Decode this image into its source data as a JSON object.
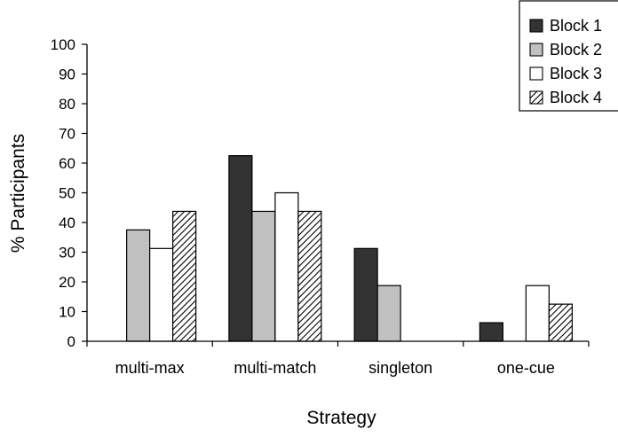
{
  "chart_data": {
    "type": "bar",
    "categories": [
      "multi-max",
      "multi-match",
      "singleton",
      "one-cue"
    ],
    "series": [
      {
        "name": "Block 1",
        "values": [
          0,
          62.5,
          31.25,
          6.25
        ],
        "color": "#333333",
        "pattern": "solid"
      },
      {
        "name": "Block 2",
        "values": [
          37.5,
          43.75,
          18.75,
          0
        ],
        "color": "#c0c0c0",
        "pattern": "solid"
      },
      {
        "name": "Block 3",
        "values": [
          31.25,
          50,
          0,
          18.75
        ],
        "color": "#ffffff",
        "pattern": "solid"
      },
      {
        "name": "Block 4",
        "values": [
          43.75,
          43.75,
          0,
          12.5
        ],
        "color": "#ffffff",
        "pattern": "hatched"
      }
    ],
    "xlabel": "Strategy",
    "ylabel": "% Participants",
    "ylim": [
      0,
      100
    ],
    "yticks": [
      0,
      10,
      20,
      30,
      40,
      50,
      60,
      70,
      80,
      90,
      100
    ],
    "grid": false,
    "legend_position": "top-right"
  }
}
